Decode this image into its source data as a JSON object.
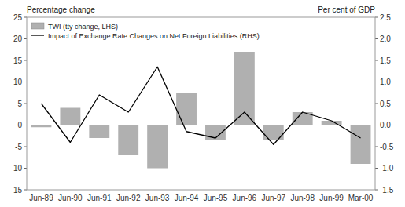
{
  "chart_data": {
    "type": "bar",
    "categories": [
      "Jun-89",
      "Jun-90",
      "Jun-91",
      "Jun-92",
      "Jun-93",
      "Jun-94",
      "Jun-95",
      "Jun-96",
      "Jun-97",
      "Jun-98",
      "Jun-99",
      "Mar-00"
    ],
    "series": [
      {
        "name": "TWI (tty change, LHS)",
        "type": "bar",
        "color": "#b0b0b0",
        "values": [
          -0.5,
          4.0,
          -3.0,
          -7.0,
          -10.0,
          7.5,
          -3.5,
          17.0,
          -3.5,
          3.0,
          1.0,
          -9.0
        ]
      },
      {
        "name": "Impact of Exchange Rate Changes on Net Foreign Liabilities (RHS)",
        "type": "line",
        "color": "#000000",
        "axis": "y2",
        "values": [
          0.5,
          -0.4,
          0.7,
          0.3,
          1.35,
          -0.15,
          -0.3,
          0.3,
          -0.45,
          0.3,
          0.1,
          -0.3
        ]
      }
    ],
    "y_label": "Percentage change",
    "y2_label": "Per cent of GDP",
    "ylim": [
      -15,
      25
    ],
    "yticks": [
      -15,
      -10,
      -5,
      0,
      5,
      10,
      15,
      20,
      25
    ],
    "y2lim": [
      -1.5,
      2.5
    ],
    "y2ticks": [
      -1.5,
      {
        "value": -1,
        "label": "-1.0"
      },
      -0.5,
      {
        "value": 0,
        "label": "0.0"
      },
      0.5,
      {
        "value": 1,
        "label": "1.0"
      },
      1.5,
      {
        "value": 2,
        "label": "2.0"
      },
      2.5
    ],
    "legend": "upper left",
    "grid": false
  }
}
